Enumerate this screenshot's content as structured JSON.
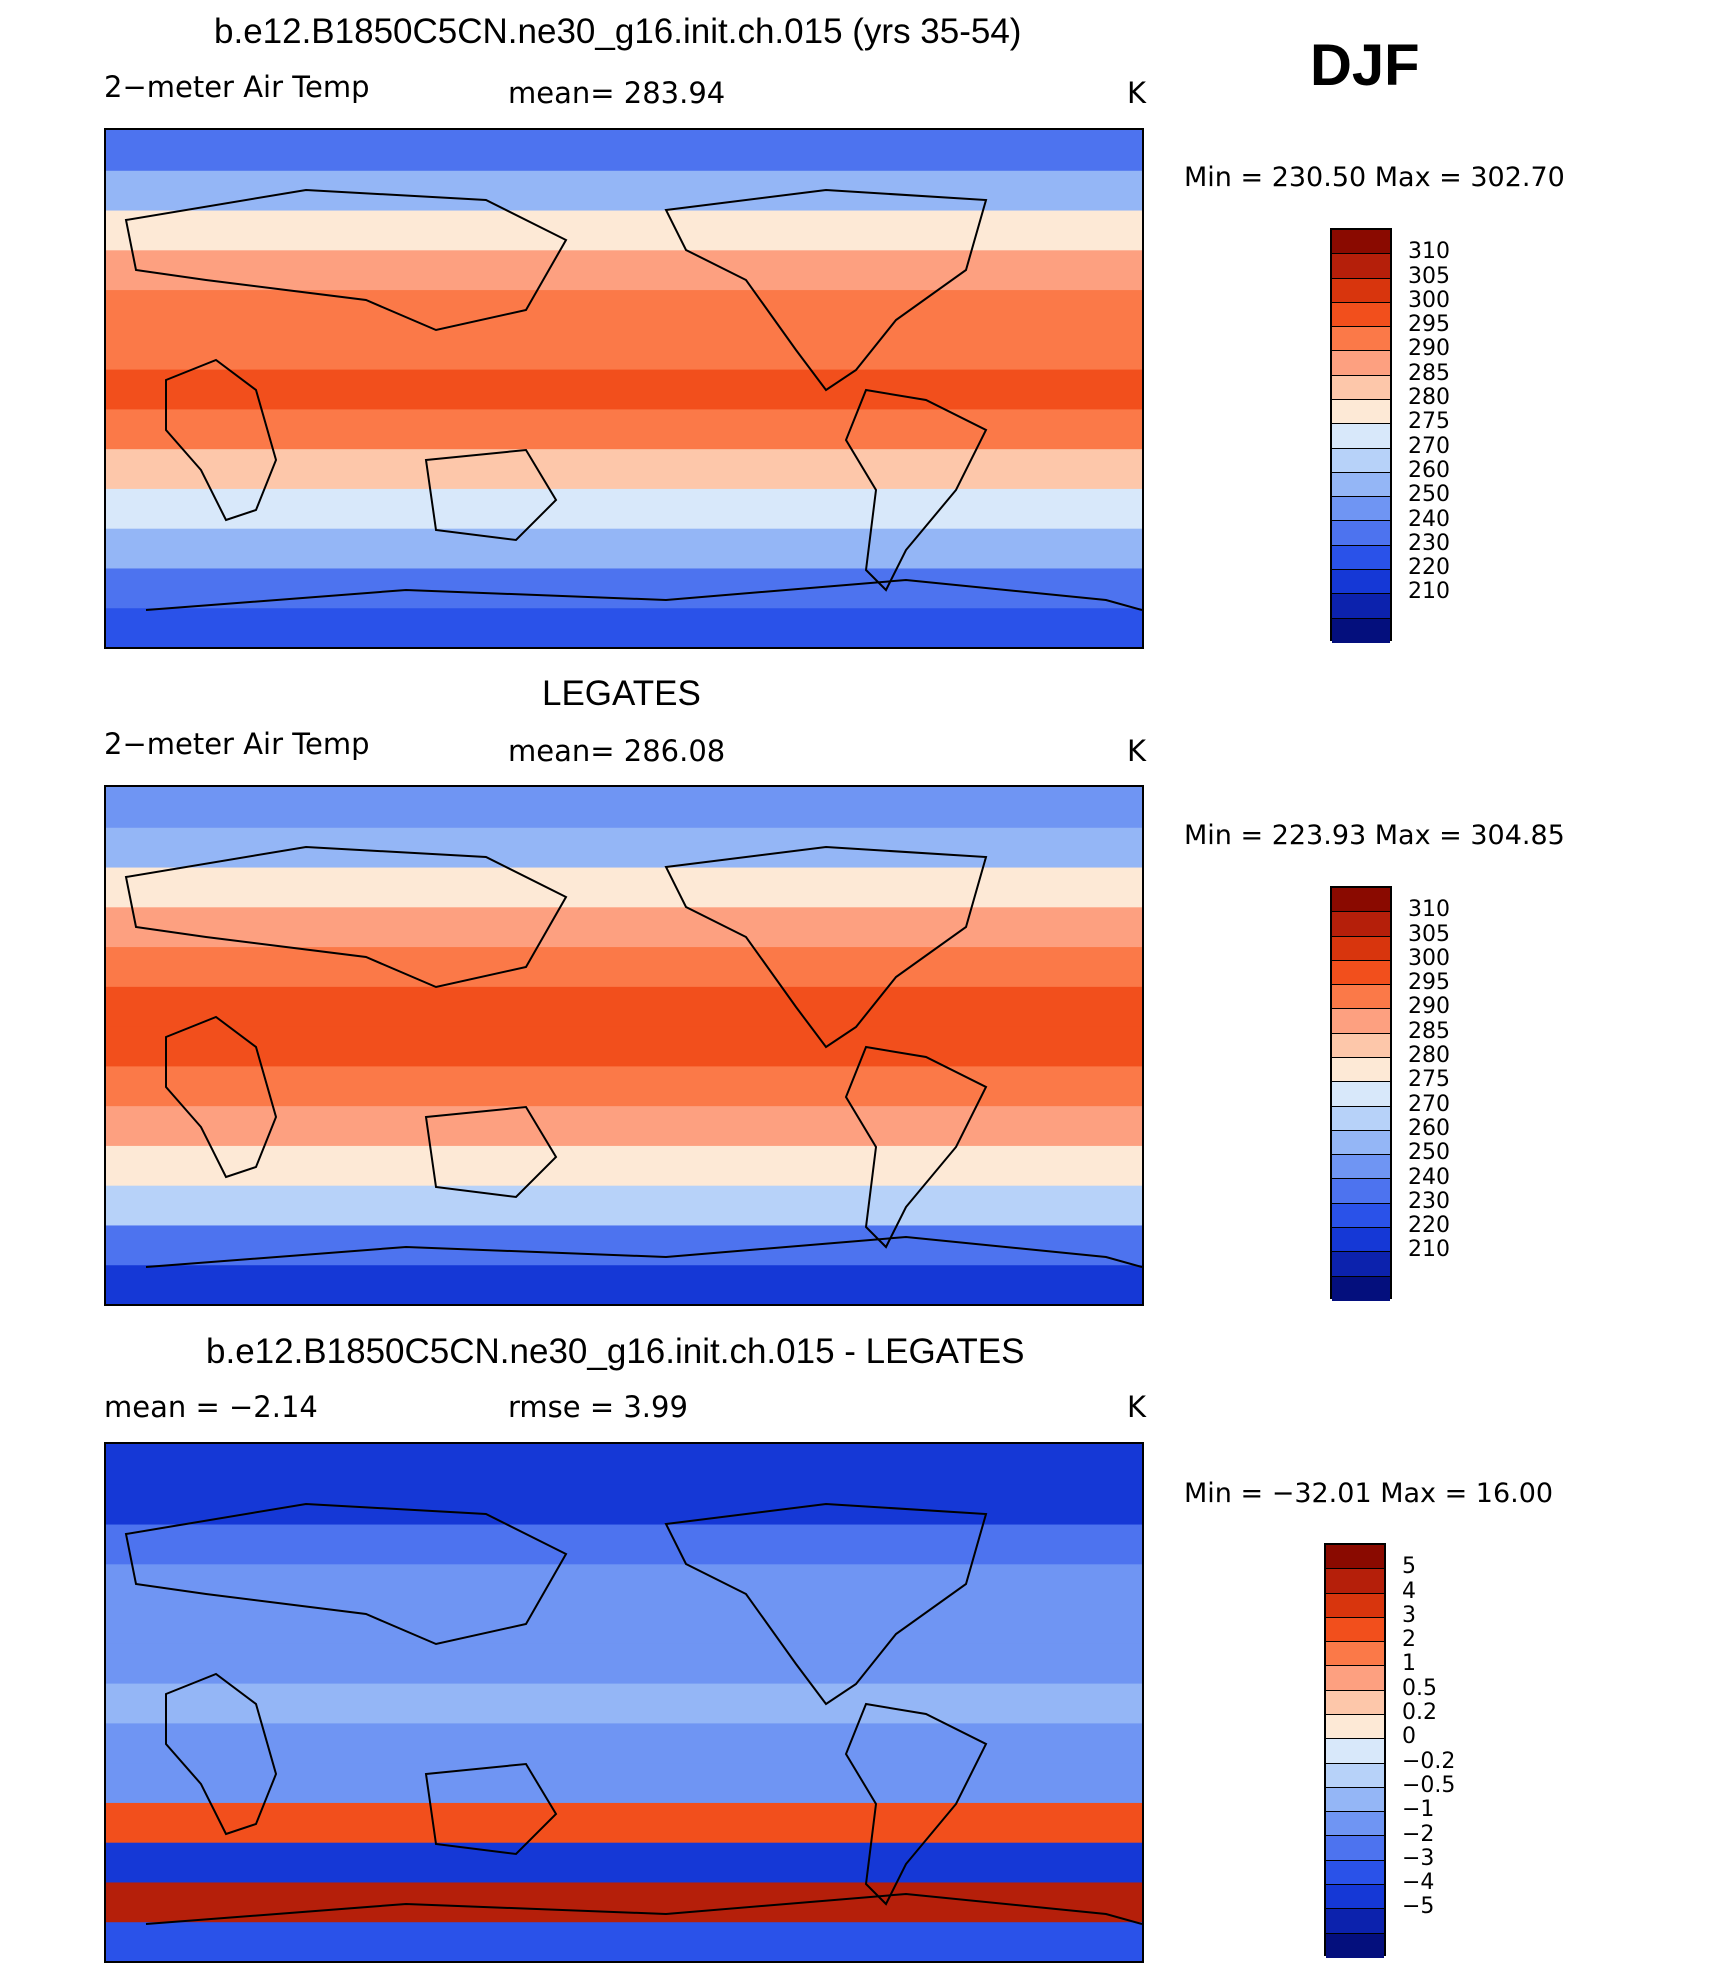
{
  "season": "DJF",
  "panels": [
    {
      "title": "b.e12.B1850C5CN.ne30_g16.init.ch.015 (yrs 35-54)",
      "left_label": "2−meter Air Temp",
      "center_label": "mean=  283.94",
      "units": "K",
      "minmax": "Min  =  230.50  Max  =  302.70",
      "colorbar_labels": [
        "310",
        "305",
        "300",
        "295",
        "290",
        "285",
        "280",
        "275",
        "270",
        "260",
        "250",
        "240",
        "230",
        "220",
        "210"
      ],
      "colorbar_colors": [
        "#8a0a00",
        "#b51f0a",
        "#d8350d",
        "#f24f1c",
        "#fb7948",
        "#fda080",
        "#fdc7aa",
        "#fde9d6",
        "#d8e8fa",
        "#b7d2f9",
        "#94b6f6",
        "#6f95f3",
        "#4d73ef",
        "#2a52e9",
        "#1538d6",
        "#0c22ad",
        "#040f7d"
      ]
    },
    {
      "title": "LEGATES",
      "left_label": "2−meter Air Temp",
      "center_label": "mean=  286.08",
      "units": "K",
      "minmax": "Min  =  223.93  Max  =  304.85",
      "colorbar_labels": [
        "310",
        "305",
        "300",
        "295",
        "290",
        "285",
        "280",
        "275",
        "270",
        "260",
        "250",
        "240",
        "230",
        "220",
        "210"
      ],
      "colorbar_colors": [
        "#8a0a00",
        "#b51f0a",
        "#d8350d",
        "#f24f1c",
        "#fb7948",
        "#fda080",
        "#fdc7aa",
        "#fde9d6",
        "#d8e8fa",
        "#b7d2f9",
        "#94b6f6",
        "#6f95f3",
        "#4d73ef",
        "#2a52e9",
        "#1538d6",
        "#0c22ad",
        "#040f7d"
      ]
    },
    {
      "title": "b.e12.B1850C5CN.ne30_g16.init.ch.015 - LEGATES",
      "left_label": "mean =    −2.14",
      "center_label": "rmse =     3.99",
      "units": "K",
      "minmax": "Min  =  −32.01  Max  =    16.00",
      "colorbar_labels": [
        "5",
        "4",
        "3",
        "2",
        "1",
        "0.5",
        "0.2",
        "0",
        "−0.2",
        "−0.5",
        "−1",
        "−2",
        "−3",
        "−4",
        "−5"
      ],
      "colorbar_colors": [
        "#8a0a00",
        "#b51f0a",
        "#d8350d",
        "#f24f1c",
        "#fb7948",
        "#fda080",
        "#fdc7aa",
        "#fde9d6",
        "#d8e8fa",
        "#b7d2f9",
        "#94b6f6",
        "#6f95f3",
        "#4d73ef",
        "#2a52e9",
        "#1538d6",
        "#0c22ad",
        "#040f7d"
      ]
    }
  ],
  "chart_data": [
    {
      "type": "heatmap",
      "title": "b.e12.B1850C5CN.ne30_g16.init.ch.015 (yrs 35-54)",
      "variable": "2−meter Air Temp",
      "units": "K",
      "mean": 283.94,
      "min": 230.5,
      "max": 302.7,
      "contour_levels": [
        210,
        220,
        230,
        240,
        250,
        260,
        270,
        275,
        280,
        285,
        290,
        295,
        300,
        305,
        310
      ],
      "zonal_profile_south_to_north": [
        232,
        245,
        262,
        275,
        288,
        296,
        300,
        299,
        297,
        292,
        282,
        262,
        246
      ]
    },
    {
      "type": "heatmap",
      "title": "LEGATES",
      "variable": "2−meter Air Temp",
      "units": "K",
      "mean": 286.08,
      "min": 223.93,
      "max": 304.85,
      "contour_levels": [
        210,
        220,
        230,
        240,
        250,
        260,
        270,
        275,
        280,
        285,
        290,
        295,
        300,
        305,
        310
      ],
      "zonal_profile_south_to_north": [
        228,
        248,
        270,
        280,
        290,
        298,
        301,
        300,
        298,
        293,
        283,
        265,
        250
      ]
    },
    {
      "type": "heatmap",
      "title": "b.e12.B1850C5CN.ne30_g16.init.ch.015 - LEGATES",
      "variable": "difference",
      "units": "K",
      "mean": -2.14,
      "rmse": 3.99,
      "min": -32.01,
      "max": 16.0,
      "contour_levels": [
        -5,
        -4,
        -3,
        -2,
        -1,
        -0.5,
        -0.2,
        0,
        0.2,
        0.5,
        1,
        2,
        3,
        4,
        5
      ],
      "zonal_profile_south_to_north": [
        -3,
        5,
        -4,
        3,
        -1,
        -1,
        -0.5,
        -1,
        -1,
        -1,
        -2,
        -4,
        -4
      ]
    }
  ]
}
